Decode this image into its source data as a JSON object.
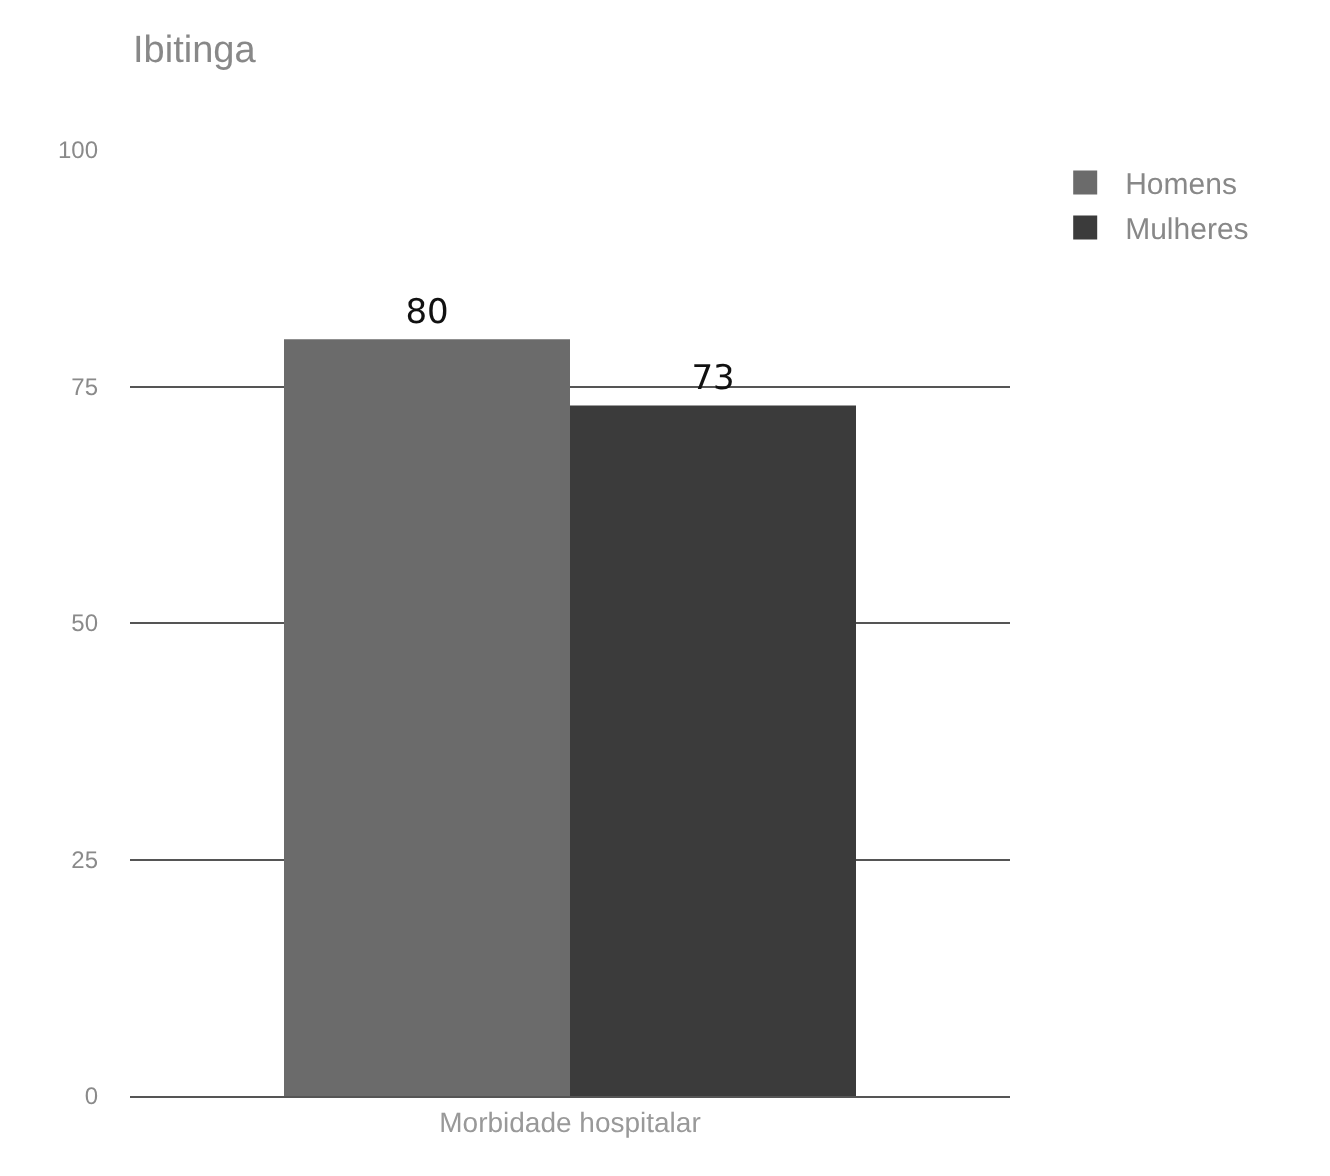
{
  "chart_data": {
    "type": "bar",
    "title": "Ibitinga",
    "categories": [
      "Morbidade hospitalar"
    ],
    "series": [
      {
        "name": "Homens",
        "color": "#6b6b6b",
        "values": [
          80
        ]
      },
      {
        "name": "Mulheres",
        "color": "#3b3b3b",
        "values": [
          73
        ]
      }
    ],
    "ylim": [
      0,
      100
    ],
    "yticks": [
      0,
      25,
      50,
      75,
      100
    ],
    "grid": "y",
    "legend": "top right",
    "data_labels": true
  }
}
